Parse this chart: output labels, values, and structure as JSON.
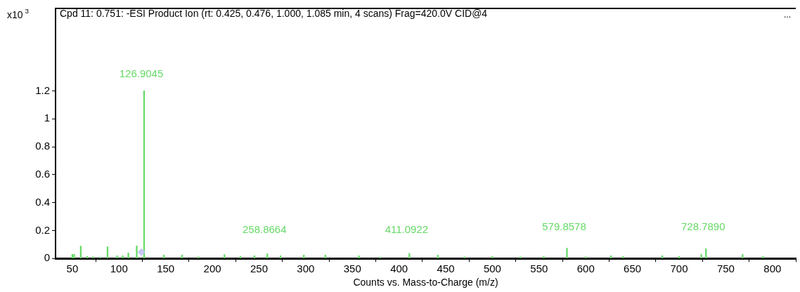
{
  "chart_data": {
    "type": "bar",
    "title": "Cpd 11: 0.751: -ESI Product Ion (rt: 0.425, 0.476, 1.000, 1.085 min, 4 scans) Frag=420.0V CID@4",
    "ylabel": "x10$^{3}$",
    "xlabel": "Counts vs. Mass-to-Charge (m/z)",
    "series": [
      {
        "color": "#66d966",
        "x": [
          50,
          52,
          59,
          66,
          72,
          80,
          87.7,
          98,
          104,
          110,
          119,
          126.9045,
          148,
          167.5,
          185,
          213,
          230,
          245,
          258.8664,
          273,
          298,
          321,
          357,
          380,
          411.0922,
          441.6,
          470,
          500,
          530,
          555,
          579.8578,
          600,
          627,
          640,
          682,
          700,
          723.8,
          728.789,
          768,
          790
        ],
        "values": [
          0.03,
          0.03,
          0.088,
          0.015,
          0.012,
          0.01,
          0.083,
          0.02,
          0.02,
          0.04,
          0.09,
          1.2,
          0.025,
          0.025,
          0.012,
          0.028,
          0.015,
          0.02,
          0.033,
          0.02,
          0.025,
          0.025,
          0.02,
          0.01,
          0.037,
          0.025,
          0.012,
          0.015,
          0.012,
          0.015,
          0.074,
          0.012,
          0.02,
          0.015,
          0.02,
          0.015,
          0.03,
          0.07,
          0.03,
          0.015
        ]
      },
      {
        "type": "scatter",
        "marker": "diamond",
        "color": "#c8c8f4",
        "x": [
          124
        ],
        "values": [
          0.045
        ]
      }
    ],
    "xlim": [
      32,
      825
    ],
    "xticks": [
      50,
      100,
      150,
      200,
      250,
      300,
      350,
      400,
      450,
      500,
      550,
      600,
      650,
      700,
      750,
      800
    ],
    "ylim": [
      0,
      1.79
    ],
    "yticks": [
      0,
      0.2,
      0.4,
      0.6,
      0.8,
      {
        "value": 1,
        "label": "1"
      },
      1.2
    ],
    "annotations": [
      {
        "text": "126.9045",
        "x": 126.9045,
        "y": 1.2
      },
      {
        "text": "258.8664",
        "x": 258.8664,
        "y": 0.033
      },
      {
        "text": "411.0922",
        "x": 411.0922,
        "y": 0.037
      },
      {
        "text": "579.8578",
        "x": 579.8578,
        "y": 0.074
      },
      {
        "text": "728.7890",
        "x": 728.789,
        "y": 0.07
      },
      "..."
    ],
    "grid": false,
    "legend": false
  }
}
